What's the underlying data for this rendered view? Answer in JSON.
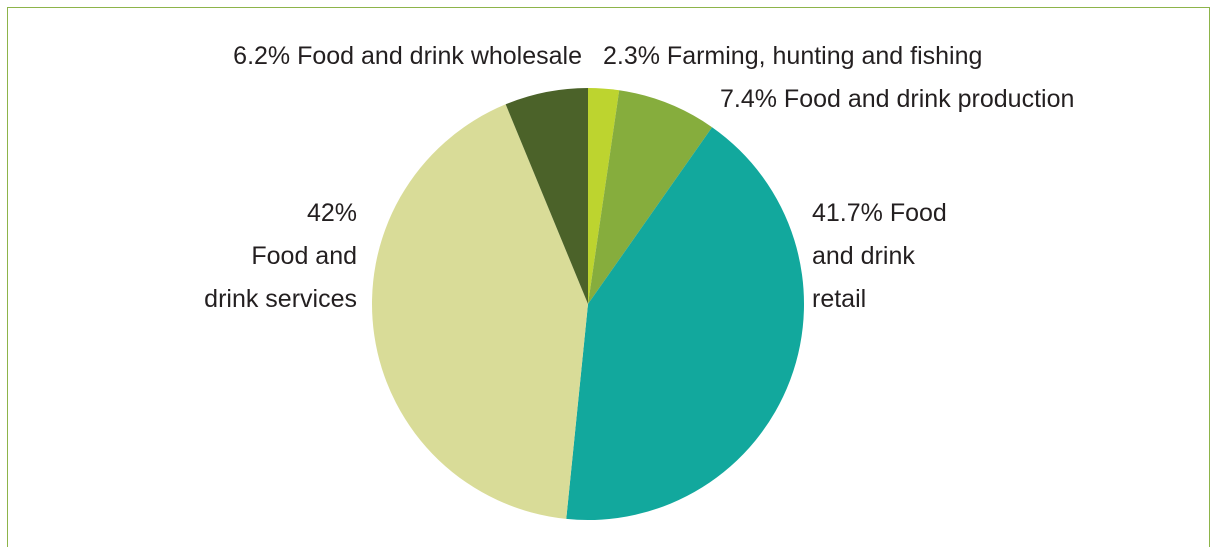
{
  "chart_data": {
    "type": "pie",
    "slices": [
      {
        "label": "Farming, hunting and fishing",
        "value": 2.3,
        "pct_label": "2.3%",
        "color": "#bdd42f"
      },
      {
        "label": "Food and drink production",
        "value": 7.4,
        "pct_label": "7.4%",
        "color": "#86ad3d"
      },
      {
        "label": "Food and drink retail",
        "value": 41.7,
        "pct_label": "41.7%",
        "color": "#12a89d"
      },
      {
        "label": "Food and drink services",
        "value": 42,
        "pct_label": "42%",
        "color": "#d9dc98"
      },
      {
        "label": "Food and drink wholesale",
        "value": 6.2,
        "pct_label": "6.2%",
        "color": "#4b6229"
      }
    ],
    "labels": {
      "farming": "2.3% Farming, hunting and fishing",
      "production": "7.4% Food and drink production",
      "retail_line1": "41.7% Food",
      "retail_line2": "and drink",
      "retail_line3": "retail",
      "services_line1": "42%",
      "services_line2": "Food and",
      "services_line3": "drink services",
      "wholesale": "6.2% Food and drink wholesale"
    },
    "start_angle_deg": 0,
    "direction": "clockwise",
    "border_color": "#8db44a"
  }
}
